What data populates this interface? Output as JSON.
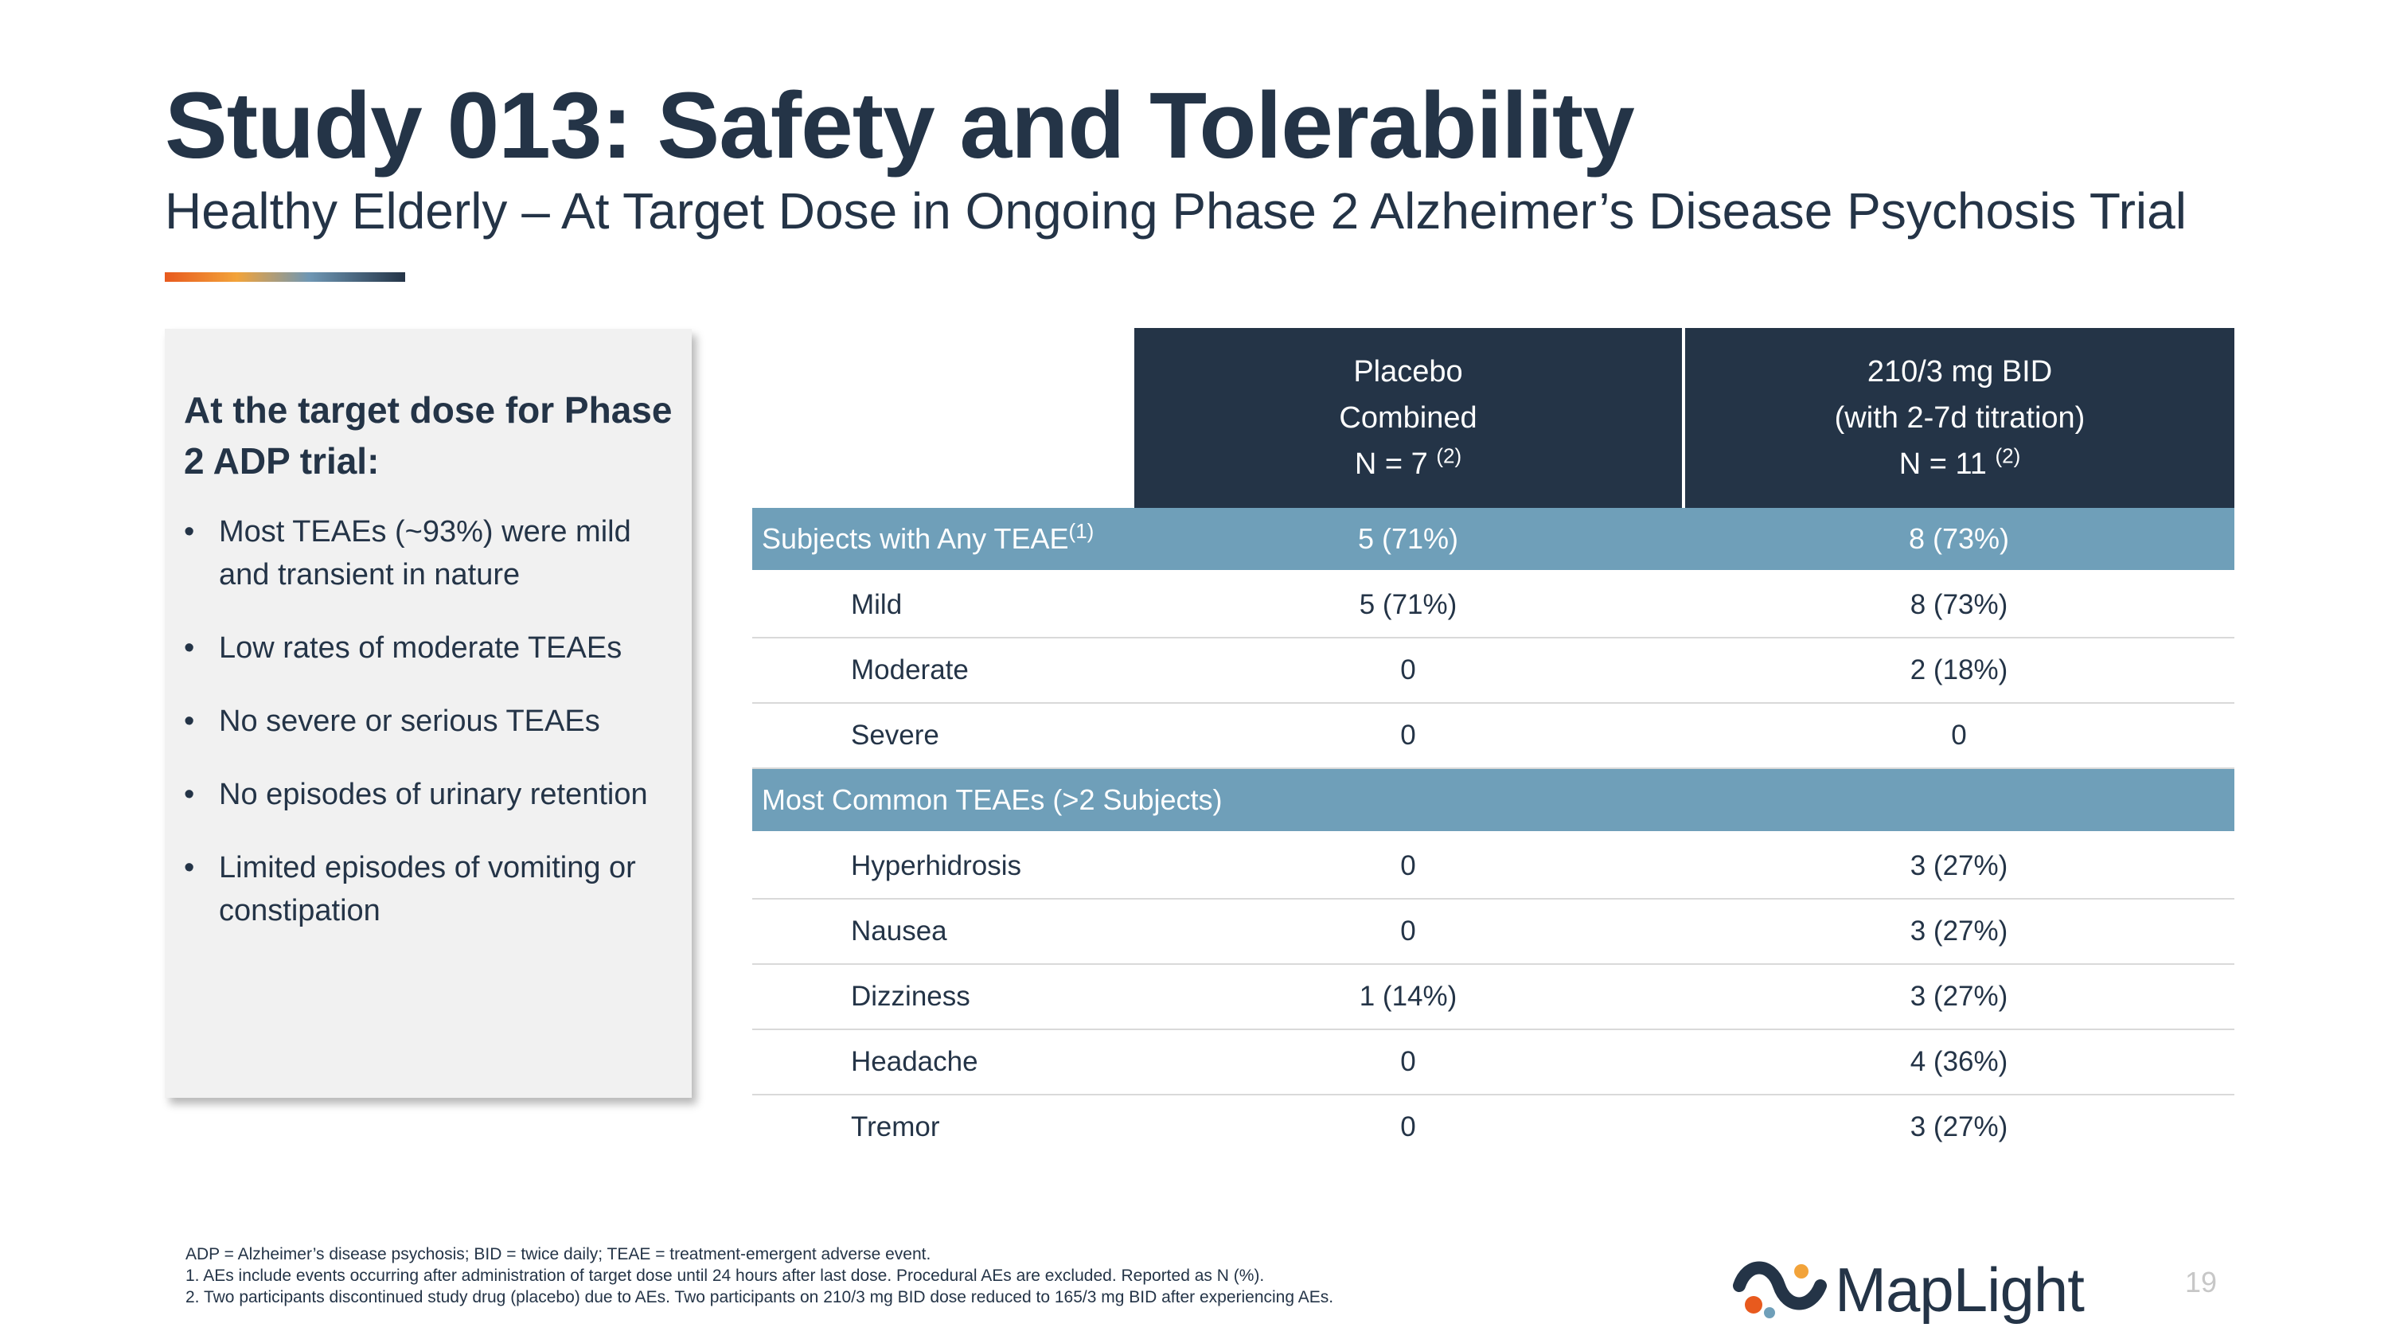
{
  "slide": {
    "title": "Study 013: Safety and Tolerability",
    "subtitle": "Healthy Elderly – At Target Dose in Ongoing Phase 2 Alzheimer’s Disease Psychosis Trial",
    "page_number": "19"
  },
  "sidebar": {
    "heading": "At the target dose for Phase 2 ADP trial:",
    "bullets": [
      "Most TEAEs (~93%) were mild and transient in nature",
      "Low rates of moderate TEAEs",
      "No severe or serious TEAEs",
      "No episodes of urinary retention",
      "Limited episodes of vomiting or constipation"
    ]
  },
  "table": {
    "headers": [
      {
        "line1": "Placebo",
        "line2": "Combined",
        "line3": "N = 7",
        "sup": "(2)"
      },
      {
        "line1": "210/3 mg BID",
        "line2": "(with 2-7d titration)",
        "line3": "N = 11",
        "sup": "(2)"
      }
    ],
    "section1": {
      "label": "Subjects with Any TEAE",
      "sup": "(1)",
      "placebo": "5 (71%)",
      "dose": "8 (73%)"
    },
    "rows1": [
      {
        "label": "Mild",
        "placebo": "5 (71%)",
        "dose": "8 (73%)"
      },
      {
        "label": "Moderate",
        "placebo": "0",
        "dose": "2 (18%)"
      },
      {
        "label": "Severe",
        "placebo": "0",
        "dose": "0"
      }
    ],
    "section2": {
      "label": "Most Common TEAEs (>2 Subjects)"
    },
    "rows2": [
      {
        "label": "Hyperhidrosis",
        "placebo": "0",
        "dose": "3 (27%)"
      },
      {
        "label": "Nausea",
        "placebo": "0",
        "dose": "3 (27%)"
      },
      {
        "label": "Dizziness",
        "placebo": "1 (14%)",
        "dose": "3 (27%)"
      },
      {
        "label": "Headache",
        "placebo": "0",
        "dose": "4 (36%)"
      },
      {
        "label": "Tremor",
        "placebo": "0",
        "dose": "3 (27%)"
      }
    ]
  },
  "footnotes": [
    "ADP = Alzheimer’s disease psychosis; BID = twice daily; TEAE = treatment-emergent adverse event.",
    "1.  AEs include events occurring after administration of target dose until 24 hours after last dose. Procedural AEs are excluded. Reported as N (%).",
    "2.  Two participants discontinued study drug (placebo) due to AEs. Two participants on 210/3 mg BID dose reduced to 165/3 mg BID after experiencing AEs."
  ],
  "logo": {
    "text": "MapLight"
  },
  "colors": {
    "navy": "#243447",
    "section_blue": "#6f9fb9",
    "panel_gray": "#f1f1f1",
    "accent_orange": "#e85a1e"
  }
}
